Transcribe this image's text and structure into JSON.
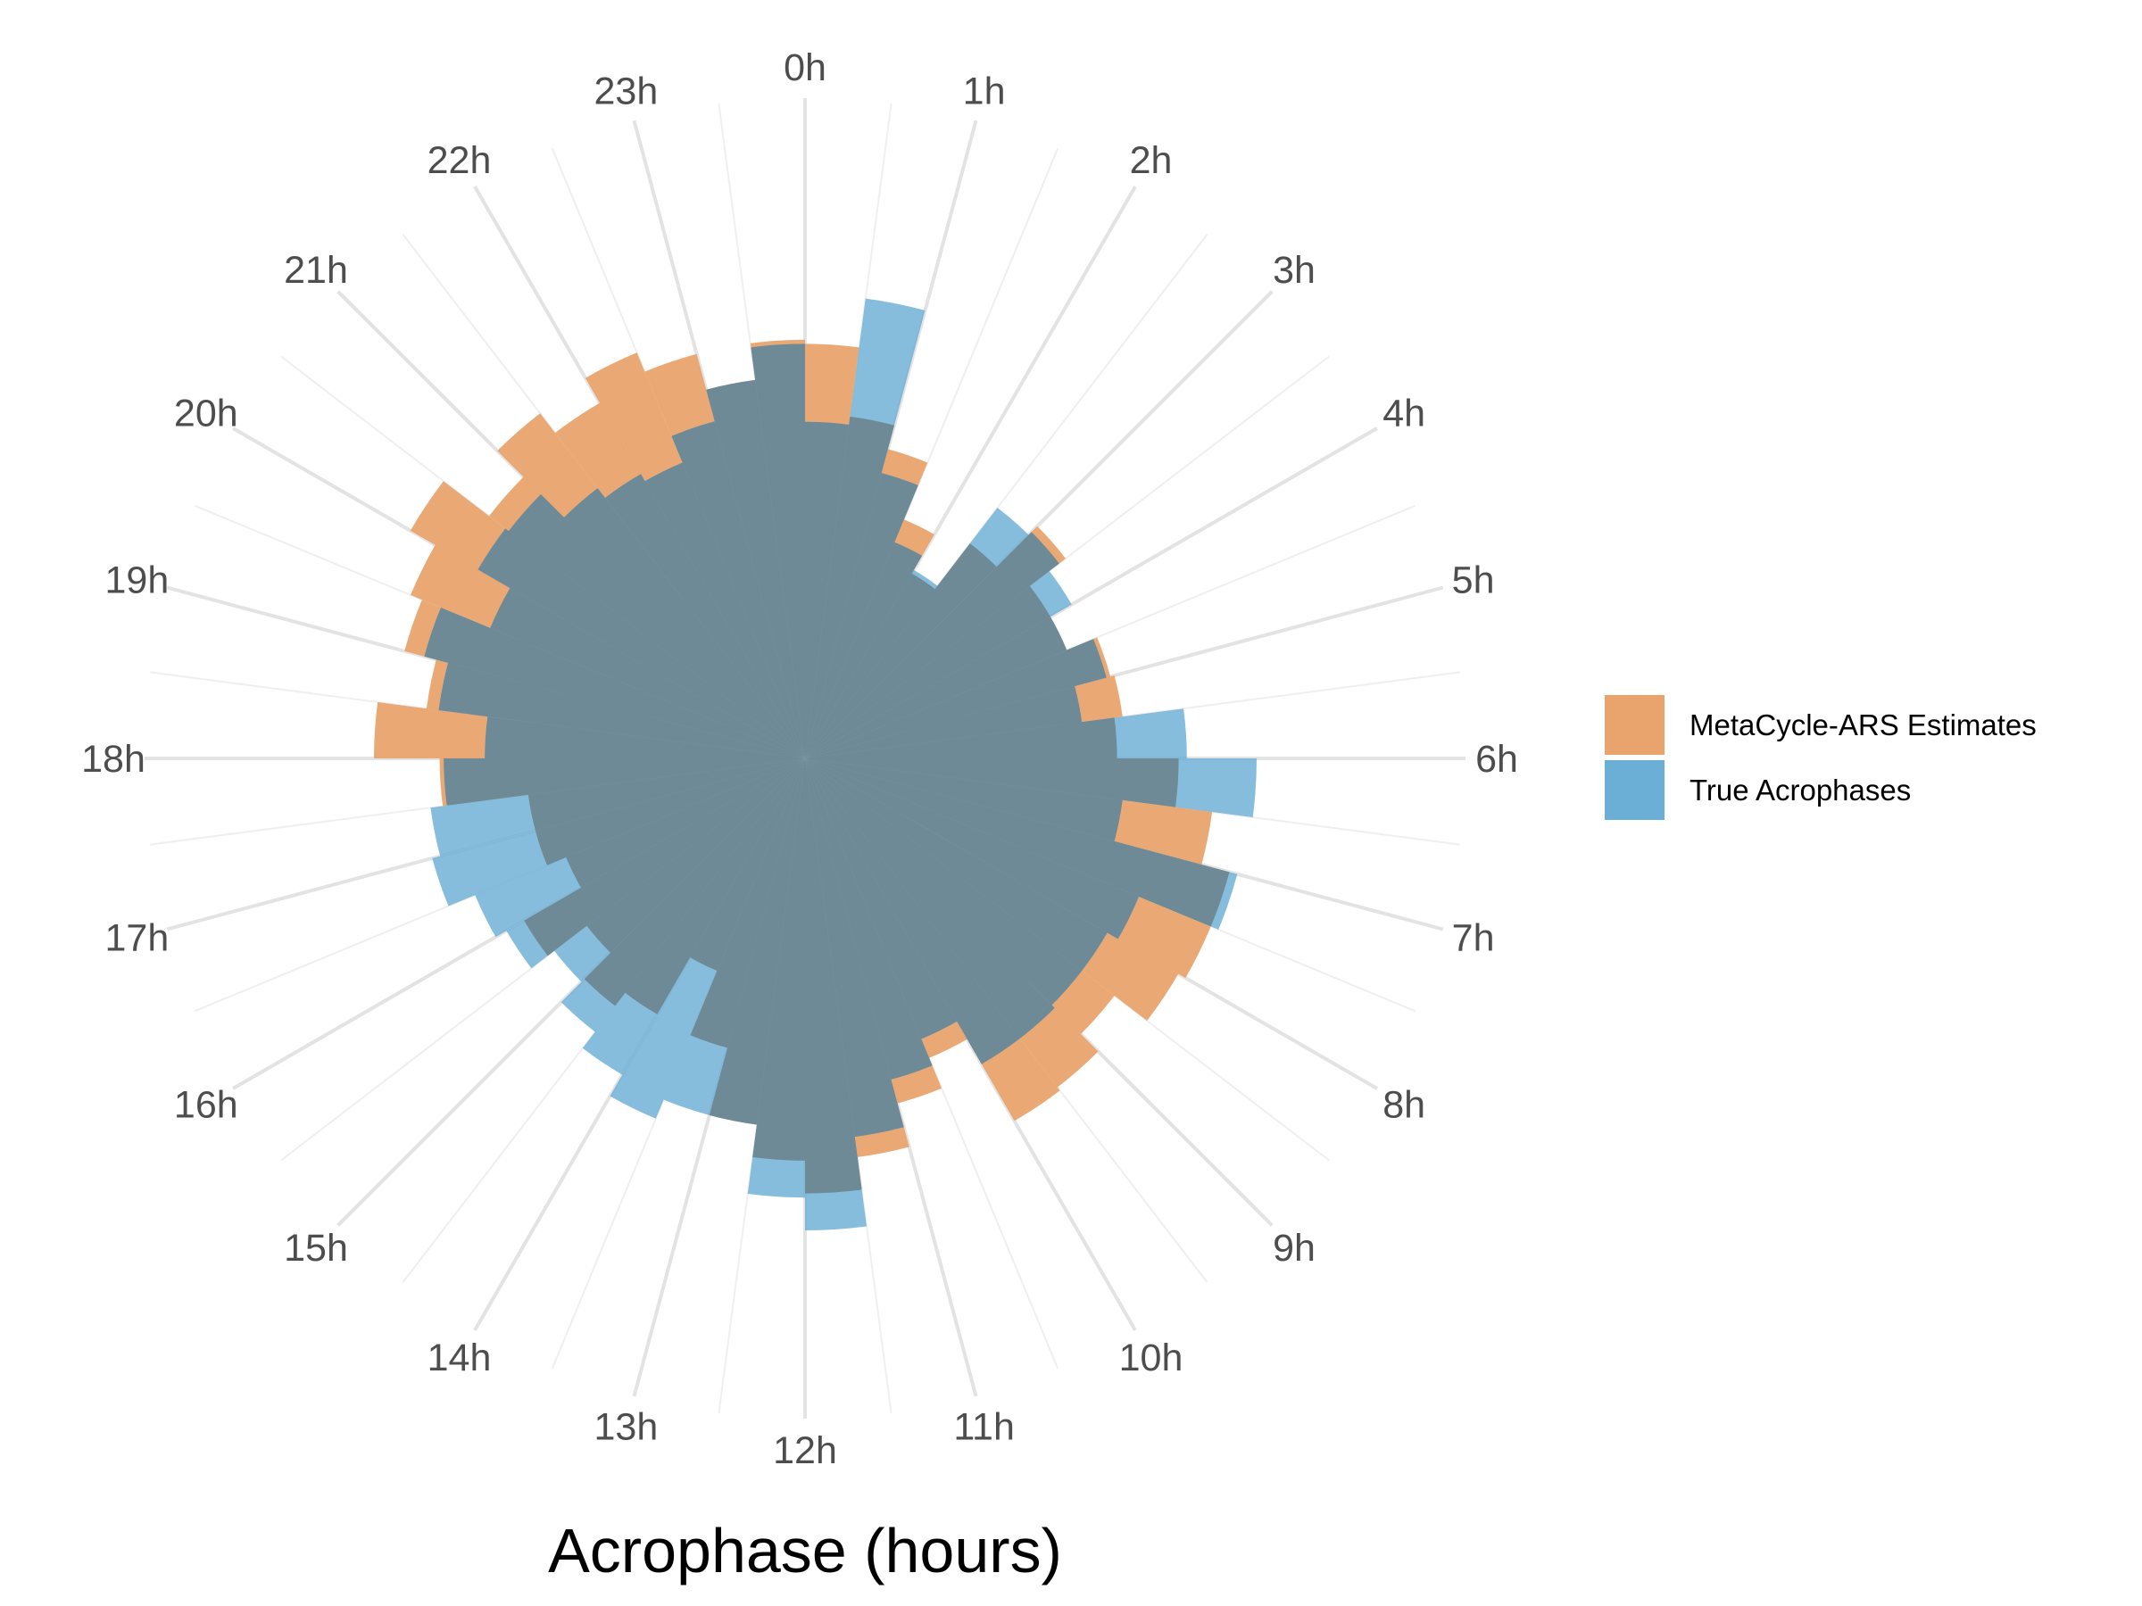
{
  "chart_data": {
    "type": "polar-histogram",
    "title": "",
    "xlabel": "Acrophase (hours)",
    "ylabel": "",
    "categories": [
      "0h",
      "1h",
      "2h",
      "3h",
      "4h",
      "5h",
      "6h",
      "7h",
      "8h",
      "9h",
      "10h",
      "11h",
      "12h",
      "13h",
      "14h",
      "15h",
      "16h",
      "17h",
      "18h",
      "19h",
      "20h",
      "21h",
      "22h",
      "23h"
    ],
    "bin_width_hours": 0.5,
    "bin_starts_hours": [
      0,
      0.5,
      1,
      1.5,
      2,
      2.5,
      3,
      3.5,
      4,
      4.5,
      5,
      5.5,
      6,
      6.5,
      7,
      7.5,
      8,
      8.5,
      9,
      9.5,
      10,
      10.5,
      11,
      11.5,
      12,
      12.5,
      13,
      13.5,
      14,
      14.5,
      15,
      15.5,
      16,
      16.5,
      17,
      17.5,
      18,
      18.5,
      19,
      19.5,
      20,
      20.5,
      21,
      21.5,
      22,
      22.5,
      23,
      23.5
    ],
    "series": [
      {
        "name": "MetaCycle-ARS Estimates",
        "color": "#E9A46D",
        "values": [
          10.1,
          8.4,
          7.8,
          6.3,
          5.2,
          6.6,
          8.0,
          6.9,
          6.9,
          7.7,
          7.8,
          7.6,
          9.1,
          10.0,
          10.7,
          10.7,
          10.5,
          9.5,
          10.1,
          10.2,
          7.9,
          8.7,
          9.8,
          10.6,
          9.8,
          9.0,
          7.3,
          5.6,
          7.2,
          7.6,
          6.7,
          7.9,
          6.3,
          6.8,
          6.8,
          8.9,
          10.5,
          9.3,
          10.1,
          10.4,
          11.1,
          9.7,
          10.6,
          10.0,
          10.7,
          10.2,
          9.3,
          10.2
        ]
      },
      {
        "name": "True Acrophases",
        "color": "#6BAED6",
        "values": [
          8.2,
          11.3,
          7.2,
          5.7,
          5.3,
          7.7,
          7.8,
          7.5,
          6.9,
          7.6,
          6.8,
          9.3,
          11.0,
          7.8,
          10.9,
          8.8,
          8.5,
          8.5,
          8.6,
          8.6,
          7.4,
          8.1,
          9.3,
          11.5,
          10.7,
          9.0,
          9.0,
          9.5,
          8.9,
          8.4,
          7.7,
          8.4,
          8.7,
          9.4,
          9.2,
          8.8,
          7.8,
          9.0,
          9.6,
          8.3,
          9.2,
          9.1,
          8.3,
          8.0,
          7.8,
          8.5,
          9.3,
          10.1
        ]
      }
    ],
    "overlap_color": "#6D8A96",
    "radial_max": 14,
    "grid": true,
    "legend_position": "right"
  }
}
